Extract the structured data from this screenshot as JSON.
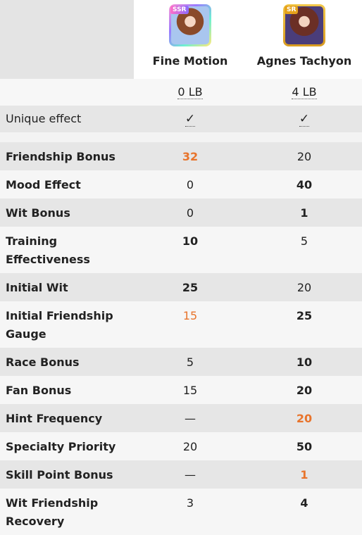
{
  "characters": [
    {
      "name": "Fine Motion",
      "rarity": "SSR",
      "limit_break": "0 LB",
      "unique_effect": "✓"
    },
    {
      "name": "Agnes Tachyon",
      "rarity": "SR",
      "limit_break": "4 LB",
      "unique_effect": "✓"
    }
  ],
  "unique_effect_label": "Unique effect",
  "rows": [
    {
      "label": "Friendship Bonus",
      "v1": "32",
      "v2": "20"
    },
    {
      "label": "Mood Effect",
      "v1": "0",
      "v2": "40"
    },
    {
      "label": "Wit Bonus",
      "v1": "0",
      "v2": "1"
    },
    {
      "label": "Training Effectiveness",
      "v1": "10",
      "v2": "5"
    },
    {
      "label": "Initial Wit",
      "v1": "25",
      "v2": "20"
    },
    {
      "label": "Initial Friendship Gauge",
      "v1": "15",
      "v2": "25"
    },
    {
      "label": "Race Bonus",
      "v1": "5",
      "v2": "10"
    },
    {
      "label": "Fan Bonus",
      "v1": "15",
      "v2": "20"
    },
    {
      "label": "Hint Frequency",
      "v1": "—",
      "v2": "20"
    },
    {
      "label": "Specialty Priority",
      "v1": "20",
      "v2": "50"
    },
    {
      "label": "Skill Point Bonus",
      "v1": "—",
      "v2": "1"
    },
    {
      "label": "Wit Friendship Recovery",
      "v1": "3",
      "v2": "4"
    }
  ],
  "colors": {
    "highlight": "#e8742c",
    "row_dark": "#e6e6e6",
    "row_light": "#f6f6f6"
  }
}
